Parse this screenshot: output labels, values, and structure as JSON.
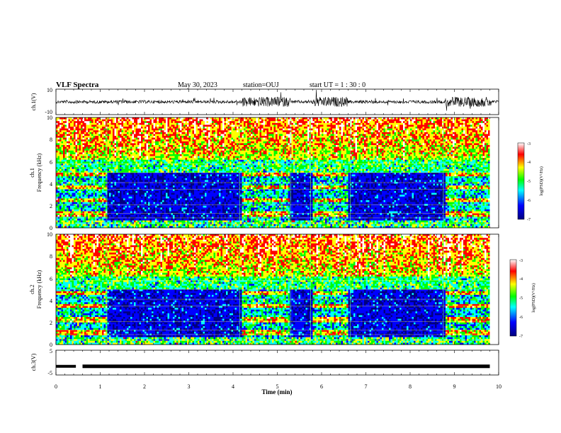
{
  "header": {
    "title": "VLF Spectra",
    "date": "May 30, 2023",
    "station": "station=OUJ",
    "start": "start  UT =   1 : 30 : 0"
  },
  "chart_data": [
    {
      "type": "line",
      "name": "ch1-waveform",
      "ylabel": "ch.1(V)",
      "ylim": [
        -10,
        10
      ],
      "ytick_labels": [
        "10",
        "-10"
      ],
      "xlim": [
        0,
        10
      ],
      "burst_intervals_min": [
        [
          4.2,
          5.3
        ],
        [
          5.8,
          6.6
        ],
        [
          8.8,
          9.8
        ]
      ]
    },
    {
      "type": "heatmap",
      "name": "ch1-spectrogram",
      "ylabel": "Frequency (kHz)",
      "ylabel_prefix": "ch.1",
      "xlim": [
        0,
        10
      ],
      "ylim": [
        0,
        10
      ],
      "yticks": [
        "0",
        "2",
        "4",
        "6",
        "8",
        "10"
      ],
      "colorbar": {
        "label": "log(PSD)(V²/Hz)",
        "range": [
          -7,
          -3
        ],
        "ticks": [
          "-3",
          "-4",
          "-5",
          "-6",
          "-7"
        ]
      },
      "segments_min": [
        [
          0,
          1.15
        ],
        [
          1.15,
          4.15
        ],
        [
          4.15,
          5.3
        ],
        [
          5.3,
          5.75
        ],
        [
          5.75,
          6.65
        ],
        [
          6.65,
          8.75
        ],
        [
          8.75,
          9.8
        ]
      ]
    },
    {
      "type": "heatmap",
      "name": "ch2-spectrogram",
      "ylabel": "Frequency (kHz)",
      "ylabel_prefix": "ch.2",
      "xlim": [
        0,
        10
      ],
      "ylim": [
        0,
        10
      ],
      "yticks": [
        "0",
        "2",
        "4",
        "6",
        "8",
        "10"
      ],
      "colorbar": {
        "label": "log(PSD)(V²/Hz)",
        "range": [
          -7,
          -3
        ],
        "ticks": [
          "-3",
          "-4",
          "-5",
          "-6",
          "-7"
        ]
      },
      "segments_min": [
        [
          0,
          1.15
        ],
        [
          1.15,
          4.15
        ],
        [
          4.15,
          5.3
        ],
        [
          5.3,
          5.75
        ],
        [
          5.75,
          6.65
        ],
        [
          6.65,
          8.75
        ],
        [
          8.75,
          9.8
        ]
      ]
    },
    {
      "type": "line",
      "name": "ch3-trace",
      "ylabel": "ch.3(V)",
      "ylim": [
        -5,
        5
      ],
      "ytick_labels": [
        "5",
        "-5"
      ],
      "xlim": [
        0,
        10
      ],
      "level_V": -1.5,
      "gap_min": [
        0.45,
        0.6
      ]
    }
  ],
  "xaxis": {
    "label": "Time (min)",
    "ticks": [
      "0",
      "1",
      "2",
      "3",
      "4",
      "5",
      "6",
      "7",
      "8",
      "9",
      "10"
    ]
  },
  "colors": {
    "colormap": [
      "#00007f",
      "#0000ff",
      "#00ffff",
      "#00ff00",
      "#ffff00",
      "#ff0000",
      "#ffffff"
    ],
    "line": "#000000"
  }
}
